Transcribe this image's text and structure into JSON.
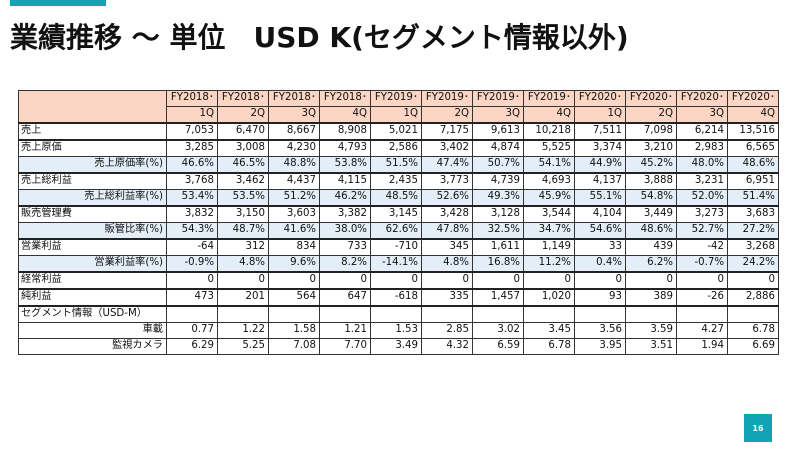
{
  "slide": {
    "title": "業績推移 〜 単位　USD K(セグメント情報以外)",
    "page_number": "16"
  },
  "table": {
    "header_year": [
      "FY2018･",
      "FY2018･",
      "FY2018･",
      "FY2018･",
      "FY2019･",
      "FY2019･",
      "FY2019･",
      "FY2019･",
      "FY2020･",
      "FY2020･",
      "FY2020･",
      "FY2020･"
    ],
    "header_q": [
      "1Q",
      "2Q",
      "3Q",
      "4Q",
      "1Q",
      "2Q",
      "3Q",
      "4Q",
      "1Q",
      "2Q",
      "3Q",
      "4Q"
    ],
    "rows": [
      {
        "label": "売上",
        "values": [
          "7,053",
          "6,470",
          "8,667",
          "8,908",
          "5,021",
          "7,175",
          "9,613",
          "10,218",
          "7,511",
          "7,098",
          "6,214",
          "13,516"
        ]
      },
      {
        "label": "売上原価",
        "values": [
          "3,285",
          "3,008",
          "4,230",
          "4,793",
          "2,586",
          "3,402",
          "4,874",
          "5,525",
          "3,374",
          "3,210",
          "2,983",
          "6,565"
        ]
      },
      {
        "label": "売上原価率(%)",
        "values": [
          "46.6%",
          "46.5%",
          "48.8%",
          "53.8%",
          "51.5%",
          "47.4%",
          "50.7%",
          "54.1%",
          "44.9%",
          "45.2%",
          "48.0%",
          "48.6%"
        ]
      },
      {
        "label": "売上総利益",
        "values": [
          "3,768",
          "3,462",
          "4,437",
          "4,115",
          "2,435",
          "3,773",
          "4,739",
          "4,693",
          "4,137",
          "3,888",
          "3,231",
          "6,951"
        ]
      },
      {
        "label": "売上総利益率(%)",
        "values": [
          "53.4%",
          "53.5%",
          "51.2%",
          "46.2%",
          "48.5%",
          "52.6%",
          "49.3%",
          "45.9%",
          "55.1%",
          "54.8%",
          "52.0%",
          "51.4%"
        ]
      },
      {
        "label": "販売管理費",
        "values": [
          "3,832",
          "3,150",
          "3,603",
          "3,382",
          "3,145",
          "3,428",
          "3,128",
          "3,544",
          "4,104",
          "3,449",
          "3,273",
          "3,683"
        ]
      },
      {
        "label": "販管比率(%)",
        "values": [
          "54.3%",
          "48.7%",
          "41.6%",
          "38.0%",
          "62.6%",
          "47.8%",
          "32.5%",
          "34.7%",
          "54.6%",
          "48.6%",
          "52.7%",
          "27.2%"
        ]
      },
      {
        "label": "営業利益",
        "values": [
          "-64",
          "312",
          "834",
          "733",
          "-710",
          "345",
          "1,611",
          "1,149",
          "33",
          "439",
          "-42",
          "3,268"
        ]
      },
      {
        "label": "営業利益率(%)",
        "values": [
          "-0.9%",
          "4.8%",
          "9.6%",
          "8.2%",
          "-14.1%",
          "4.8%",
          "16.8%",
          "11.2%",
          "0.4%",
          "6.2%",
          "-0.7%",
          "24.2%"
        ]
      },
      {
        "label": "経常利益",
        "values": [
          "0",
          "0",
          "0",
          "0",
          "0",
          "0",
          "0",
          "0",
          "0",
          "0",
          "0",
          "0"
        ]
      },
      {
        "label": "純利益",
        "values": [
          "473",
          "201",
          "564",
          "647",
          "-618",
          "335",
          "1,457",
          "1,020",
          "93",
          "389",
          "-26",
          "2,886"
        ]
      },
      {
        "label": "セグメント情報（USD-M）",
        "values": [
          "",
          "",
          "",
          "",
          "",
          "",
          "",
          "",
          "",
          "",
          "",
          ""
        ]
      },
      {
        "label": "車載",
        "values": [
          "0.77",
          "1.22",
          "1.58",
          "1.21",
          "1.53",
          "2.85",
          "3.02",
          "3.45",
          "3.56",
          "3.59",
          "4.27",
          "6.78"
        ]
      },
      {
        "label": "監視カメラ",
        "values": [
          "6.29",
          "5.25",
          "7.08",
          "7.70",
          "3.49",
          "4.32",
          "6.59",
          "6.78",
          "3.95",
          "3.51",
          "1.94",
          "6.69"
        ]
      }
    ]
  }
}
